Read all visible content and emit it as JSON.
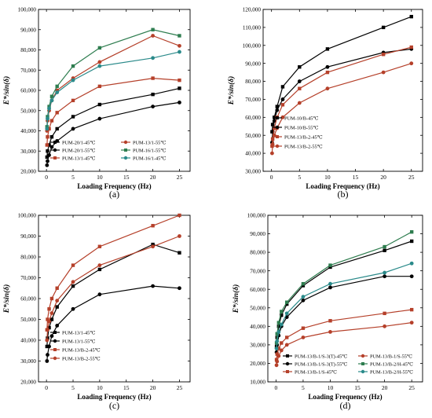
{
  "figure": {
    "panels": [
      "(a)",
      "(b)",
      "(c)",
      "(d)"
    ]
  },
  "chart_data": [
    {
      "type": "line",
      "panel_label": "(a)",
      "xlabel": "Loading Frequency (Hz)",
      "ylabel": "E*/sin(δ)",
      "xlim": [
        -1.5,
        27
      ],
      "ylim": [
        20000,
        100000
      ],
      "xticks": [
        0,
        5,
        10,
        15,
        20,
        25
      ],
      "yticks": [
        20000,
        30000,
        40000,
        50000,
        60000,
        70000,
        80000,
        90000,
        100000
      ],
      "ytick_labels": [
        "20,000",
        "30,000",
        "40,000",
        "50,000",
        "60,000",
        "70,000",
        "80,000",
        "90,000",
        "100,000"
      ],
      "legend_position": "bottom-left",
      "x": [
        0.1,
        0.2,
        0.5,
        1,
        2,
        5,
        10,
        20,
        25
      ],
      "series": [
        {
          "name": "PUM-20/1-45℃",
          "color": "#000000",
          "values": [
            27000,
            30000,
            33000,
            37000,
            41000,
            47000,
            53000,
            58000,
            61000
          ]
        },
        {
          "name": "PUM-20/1-55℃",
          "color": "#000000",
          "values": [
            23000,
            25000,
            28000,
            32000,
            35000,
            41000,
            46000,
            52000,
            54000
          ]
        },
        {
          "name": "PUM-13/1-45℃",
          "color": "#b5402a",
          "values": [
            33000,
            37000,
            41000,
            45000,
            49000,
            55000,
            62000,
            66000,
            65000
          ]
        },
        {
          "name": "PUM-13/1-55℃",
          "color": "#b5402a",
          "values": [
            40000,
            45000,
            50000,
            55000,
            60000,
            66000,
            74000,
            87000,
            82000
          ]
        },
        {
          "name": "PUM-16/1-55℃",
          "color": "#2e7d4f",
          "values": [
            42000,
            47000,
            52000,
            57000,
            62000,
            72000,
            81000,
            90000,
            87000
          ]
        },
        {
          "name": "PUM-16/1-45℃",
          "color": "#2a8a8a",
          "values": [
            41000,
            46000,
            51000,
            55000,
            59000,
            65000,
            72000,
            76000,
            79000
          ]
        }
      ]
    },
    {
      "type": "line",
      "panel_label": "(b)",
      "xlabel": "Loading Frequency (Hz)",
      "ylabel": "E*/sin(δ)",
      "xlim": [
        -1.5,
        27
      ],
      "ylim": [
        30000,
        120000
      ],
      "xticks": [
        0,
        5,
        10,
        15,
        20,
        25
      ],
      "yticks": [
        30000,
        40000,
        50000,
        60000,
        70000,
        80000,
        90000,
        100000,
        110000,
        120000
      ],
      "ytick_labels": [
        "30,000",
        "40,000",
        "50,000",
        "60,000",
        "70,000",
        "80,000",
        "90,000",
        "100,000",
        "110,000",
        "120,000"
      ],
      "legend_position": "center-left",
      "x": [
        0.1,
        0.2,
        0.5,
        1,
        2,
        5,
        10,
        20,
        25
      ],
      "series": [
        {
          "name": "PUM-10/B-45℃",
          "color": "#000000",
          "values": [
            52000,
            56000,
            60000,
            66000,
            77000,
            88000,
            98000,
            110000,
            116000
          ]
        },
        {
          "name": "PUM-10/B-55℃",
          "color": "#000000",
          "values": [
            46000,
            52000,
            58000,
            64000,
            70000,
            80000,
            88000,
            96000,
            98000
          ]
        },
        {
          "name": "PUM-13/B-2-45℃",
          "color": "#b5402a",
          "values": [
            44000,
            48000,
            54000,
            60000,
            67000,
            76000,
            85000,
            95000,
            99000
          ]
        },
        {
          "name": "PUM-13/B-2-55℃",
          "color": "#b5402a",
          "values": [
            40000,
            45000,
            50000,
            54000,
            60000,
            68000,
            76000,
            85000,
            90000
          ]
        }
      ]
    },
    {
      "type": "line",
      "panel_label": "(c)",
      "xlabel": "Loading Frequency (Hz)",
      "ylabel": "E*/sin(δ)",
      "xlim": [
        -1.5,
        27
      ],
      "ylim": [
        20000,
        100000
      ],
      "xticks": [
        0,
        5,
        10,
        15,
        20,
        25
      ],
      "yticks": [
        20000,
        30000,
        40000,
        50000,
        60000,
        70000,
        80000,
        90000,
        100000
      ],
      "ytick_labels": [
        "20,000",
        "30,000",
        "40,000",
        "50,000",
        "60,000",
        "70,000",
        "80,000",
        "90,000",
        "100,000"
      ],
      "legend_position": "bottom-left",
      "x": [
        0.1,
        0.2,
        0.5,
        1,
        2,
        5,
        10,
        20,
        25
      ],
      "series": [
        {
          "name": "PUM-13/1-45℃",
          "color": "#000000",
          "values": [
            37000,
            41000,
            46000,
            50000,
            56000,
            66000,
            74000,
            86000,
            82000
          ]
        },
        {
          "name": "PUM-13/1-55℃",
          "color": "#000000",
          "values": [
            30000,
            33000,
            37000,
            42000,
            47000,
            55000,
            62000,
            66000,
            65000
          ]
        },
        {
          "name": "PUM-13/B-2-45℃",
          "color": "#b5402a",
          "values": [
            45000,
            50000,
            55000,
            60000,
            65000,
            76000,
            85000,
            95000,
            100000
          ]
        },
        {
          "name": "PUM-13/B-2-55℃",
          "color": "#b5402a",
          "values": [
            40000,
            45000,
            49000,
            53000,
            59000,
            68000,
            76000,
            85000,
            90000
          ]
        }
      ]
    },
    {
      "type": "line",
      "panel_label": "(d)",
      "xlabel": "Loading Frequency (Hz)",
      "ylabel": "E*/sin(δ)",
      "xlim": [
        -1.5,
        27
      ],
      "ylim": [
        10000,
        100000
      ],
      "xticks": [
        0,
        5,
        10,
        15,
        20,
        25
      ],
      "yticks": [
        10000,
        20000,
        30000,
        40000,
        50000,
        60000,
        70000,
        80000,
        90000,
        100000
      ],
      "ytick_labels": [
        "10,000",
        "20,000",
        "30,000",
        "40,000",
        "50,000",
        "60,000",
        "70,000",
        "80,000",
        "90,000",
        "100,000"
      ],
      "legend_position": "bottom",
      "x": [
        0.1,
        0.2,
        0.5,
        1,
        2,
        5,
        10,
        20,
        25
      ],
      "series": [
        {
          "name": "PUM-13/B-1/S-3(T)-45℃",
          "color": "#000000",
          "values": [
            29000,
            34000,
            40000,
            46000,
            52000,
            62000,
            72000,
            81000,
            86000
          ]
        },
        {
          "name": "PUM-13/B-1/S-3(T)-55℃",
          "color": "#000000",
          "values": [
            26000,
            30000,
            35000,
            40000,
            45000,
            54000,
            61000,
            67000,
            67000
          ]
        },
        {
          "name": "PUM-13/B-1/S-45℃",
          "color": "#b5402a",
          "values": [
            22000,
            25000,
            28000,
            31000,
            34000,
            39000,
            43000,
            47000,
            49000
          ]
        },
        {
          "name": "PUM-13/B-1/S-55℃",
          "color": "#b5402a",
          "values": [
            19000,
            21000,
            24000,
            27000,
            30000,
            34000,
            37000,
            40000,
            42000
          ]
        },
        {
          "name": "PUM-13/B-2/H-45℃",
          "color": "#2e7d4f",
          "values": [
            31000,
            36000,
            42000,
            48000,
            53000,
            63000,
            73000,
            83000,
            91000
          ]
        },
        {
          "name": "PUM-13/B-2/H-55℃",
          "color": "#2a8a8a",
          "values": [
            28000,
            32000,
            37000,
            41000,
            47000,
            56000,
            63000,
            69000,
            74000
          ]
        }
      ]
    }
  ]
}
